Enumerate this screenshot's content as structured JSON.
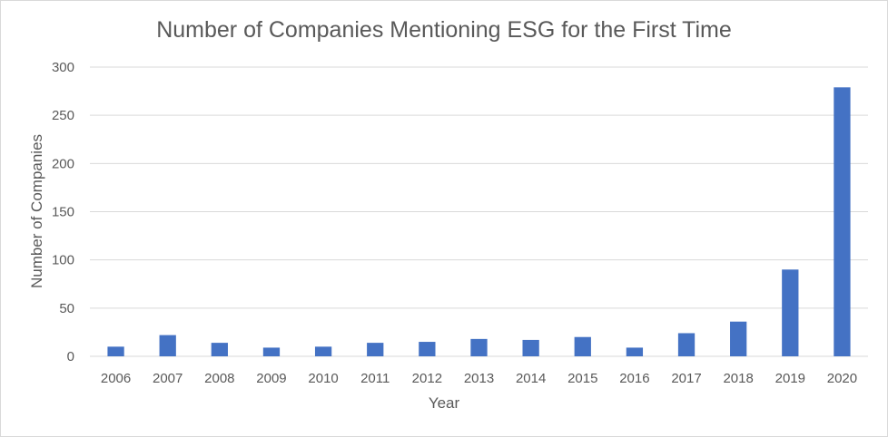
{
  "chart_data": {
    "type": "bar",
    "title": "Number of Companies Mentioning ESG for the First Time",
    "xlabel": "Year",
    "ylabel": "Number of Companies",
    "categories": [
      "2006",
      "2007",
      "2008",
      "2009",
      "2010",
      "2011",
      "2012",
      "2013",
      "2014",
      "2015",
      "2016",
      "2017",
      "2018",
      "2019",
      "2020"
    ],
    "values": [
      10,
      22,
      14,
      9,
      10,
      14,
      15,
      18,
      17,
      20,
      9,
      24,
      36,
      90,
      279
    ],
    "ylim": [
      0,
      300
    ],
    "yticks": [
      0,
      50,
      100,
      150,
      200,
      250,
      300
    ],
    "grid": true,
    "legend": "none",
    "bar_color": "#4472c4",
    "grid_color": "#d9d9d9"
  }
}
